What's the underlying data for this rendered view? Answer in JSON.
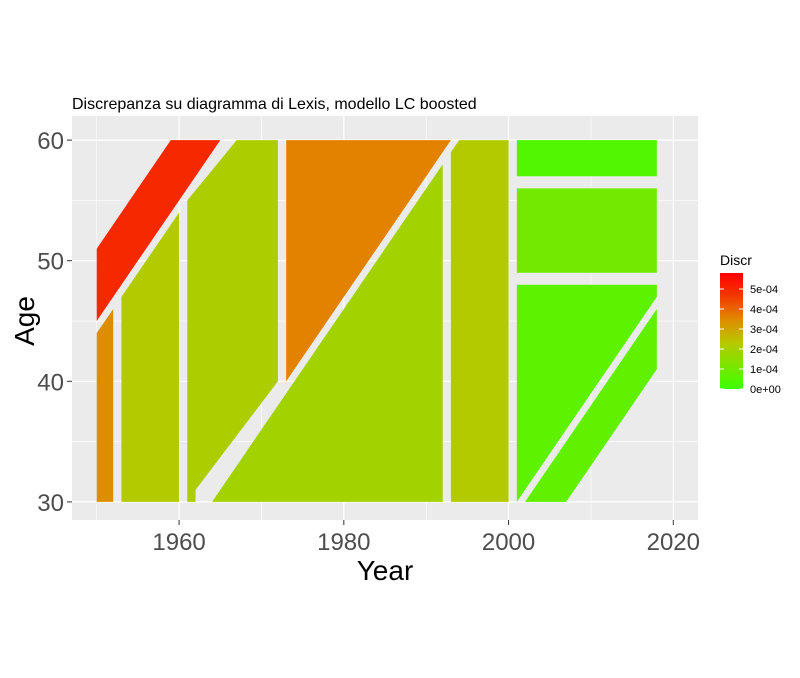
{
  "chart_data": {
    "type": "heatmap",
    "title": "Discrepanza su diagramma di Lexis, modello LC boosted",
    "xlabel": "Year",
    "ylabel": "Age",
    "xlim": [
      1947,
      2023
    ],
    "ylim": [
      28.5,
      62
    ],
    "x_ticks": [
      1960,
      1980,
      2000,
      2020
    ],
    "y_ticks": [
      30,
      40,
      50,
      60
    ],
    "grid": true,
    "panel_background": "#ebebeb",
    "legend": {
      "title": "Discr",
      "position": "right",
      "min": 0,
      "max": 0.00058,
      "colors": [
        "#3cff00",
        "#7ae600",
        "#b8c800",
        "#e08a00",
        "#f23a00",
        "#ff0000"
      ],
      "breaks": [
        {
          "value": 0,
          "label": "0e+00"
        },
        {
          "value": 0.0001,
          "label": "1e-04"
        },
        {
          "value": 0.0002,
          "label": "2e-04"
        },
        {
          "value": 0.0003,
          "label": "3e-04"
        },
        {
          "value": 0.0004,
          "label": "4e-04"
        },
        {
          "value": 0.0005,
          "label": "5e-04"
        }
      ]
    },
    "regions": [
      {
        "name": "cohort-1895-1905",
        "value": 0.0005,
        "points": [
          [
            1950,
            45
          ],
          [
            1950,
            51
          ],
          [
            1959,
            60
          ],
          [
            1965,
            60
          ]
        ]
      },
      {
        "name": "period-1950-1952",
        "value": 0.00034,
        "points": [
          [
            1950,
            30
          ],
          [
            1952,
            30
          ],
          [
            1952,
            46
          ],
          [
            1950,
            44
          ]
        ]
      },
      {
        "name": "period-1953-1960",
        "value": 0.00022,
        "points": [
          [
            1953,
            30
          ],
          [
            1960,
            30
          ],
          [
            1960,
            54
          ],
          [
            1953,
            47
          ]
        ]
      },
      {
        "name": "period-1961-1972",
        "value": 0.00021,
        "points": [
          [
            1961,
            30
          ],
          [
            1962,
            30
          ],
          [
            1962,
            31
          ],
          [
            1972,
            40
          ],
          [
            1972,
            60
          ],
          [
            1967,
            60
          ],
          [
            1961,
            55
          ]
        ]
      },
      {
        "name": "period-1973-1992",
        "value": 0.00036,
        "points": [
          [
            1973,
            40
          ],
          [
            1973,
            60
          ],
          [
            1993,
            60
          ]
        ]
      },
      {
        "name": "cohort-1930-1962",
        "value": 0.00019,
        "points": [
          [
            1964,
            30
          ],
          [
            1992,
            30
          ],
          [
            1992,
            58
          ]
        ]
      },
      {
        "name": "period-1993-2000",
        "value": 0.00022,
        "points": [
          [
            1993,
            59
          ],
          [
            1994,
            60
          ],
          [
            2000,
            60
          ],
          [
            2000,
            30
          ],
          [
            1993,
            30
          ]
        ]
      },
      {
        "name": "age-57-60-2001-2018",
        "value": 4e-05,
        "points": [
          [
            2001,
            57
          ],
          [
            2018,
            57
          ],
          [
            2018,
            60
          ],
          [
            2001,
            60
          ]
        ]
      },
      {
        "name": "age-49-56-2001-2018",
        "value": 0.0001,
        "points": [
          [
            2001,
            49
          ],
          [
            2018,
            49
          ],
          [
            2018,
            56
          ],
          [
            2001,
            56
          ]
        ]
      },
      {
        "name": "upper-triangle-2001-2018",
        "value": 6e-05,
        "points": [
          [
            2001,
            30
          ],
          [
            2001,
            48
          ],
          [
            2018,
            48
          ],
          [
            2018,
            47
          ]
        ]
      },
      {
        "name": "lower-trapezoid-2002-2018",
        "value": 7e-05,
        "points": [
          [
            2002,
            30
          ],
          [
            2007,
            30
          ],
          [
            2018,
            41
          ],
          [
            2018,
            46
          ]
        ]
      }
    ]
  }
}
